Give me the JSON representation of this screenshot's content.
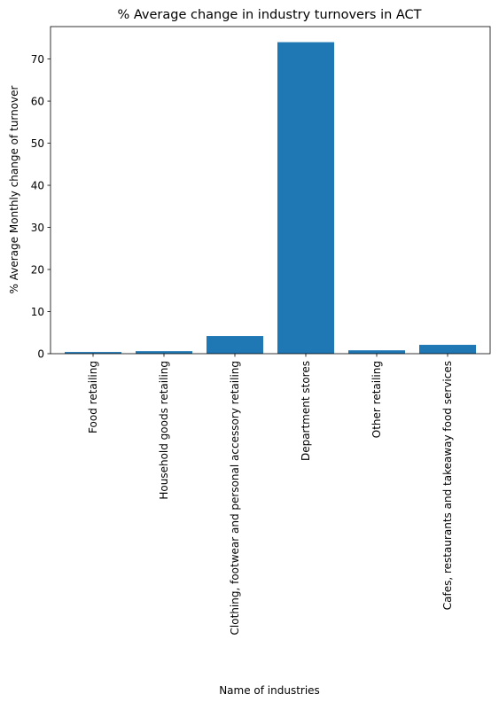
{
  "chart_data": {
    "type": "bar",
    "title": "% Average change in industry turnovers in ACT",
    "xlabel": "Name of industries",
    "ylabel": "% Average Monthly change of turnover",
    "categories": [
      "Food retailing",
      "Household goods retailing",
      "Clothing, footwear and personal accessory retailing",
      "Department stores",
      "Other retailing",
      "Cafes, restaurants and takeaway food services"
    ],
    "values": [
      0.4,
      0.6,
      4.2,
      74.0,
      0.8,
      2.1
    ],
    "ylim": [
      0,
      77.7
    ],
    "yticks": [
      0,
      10,
      20,
      30,
      40,
      50,
      60,
      70
    ],
    "grid": false,
    "bar_color": "#1f77b4"
  }
}
